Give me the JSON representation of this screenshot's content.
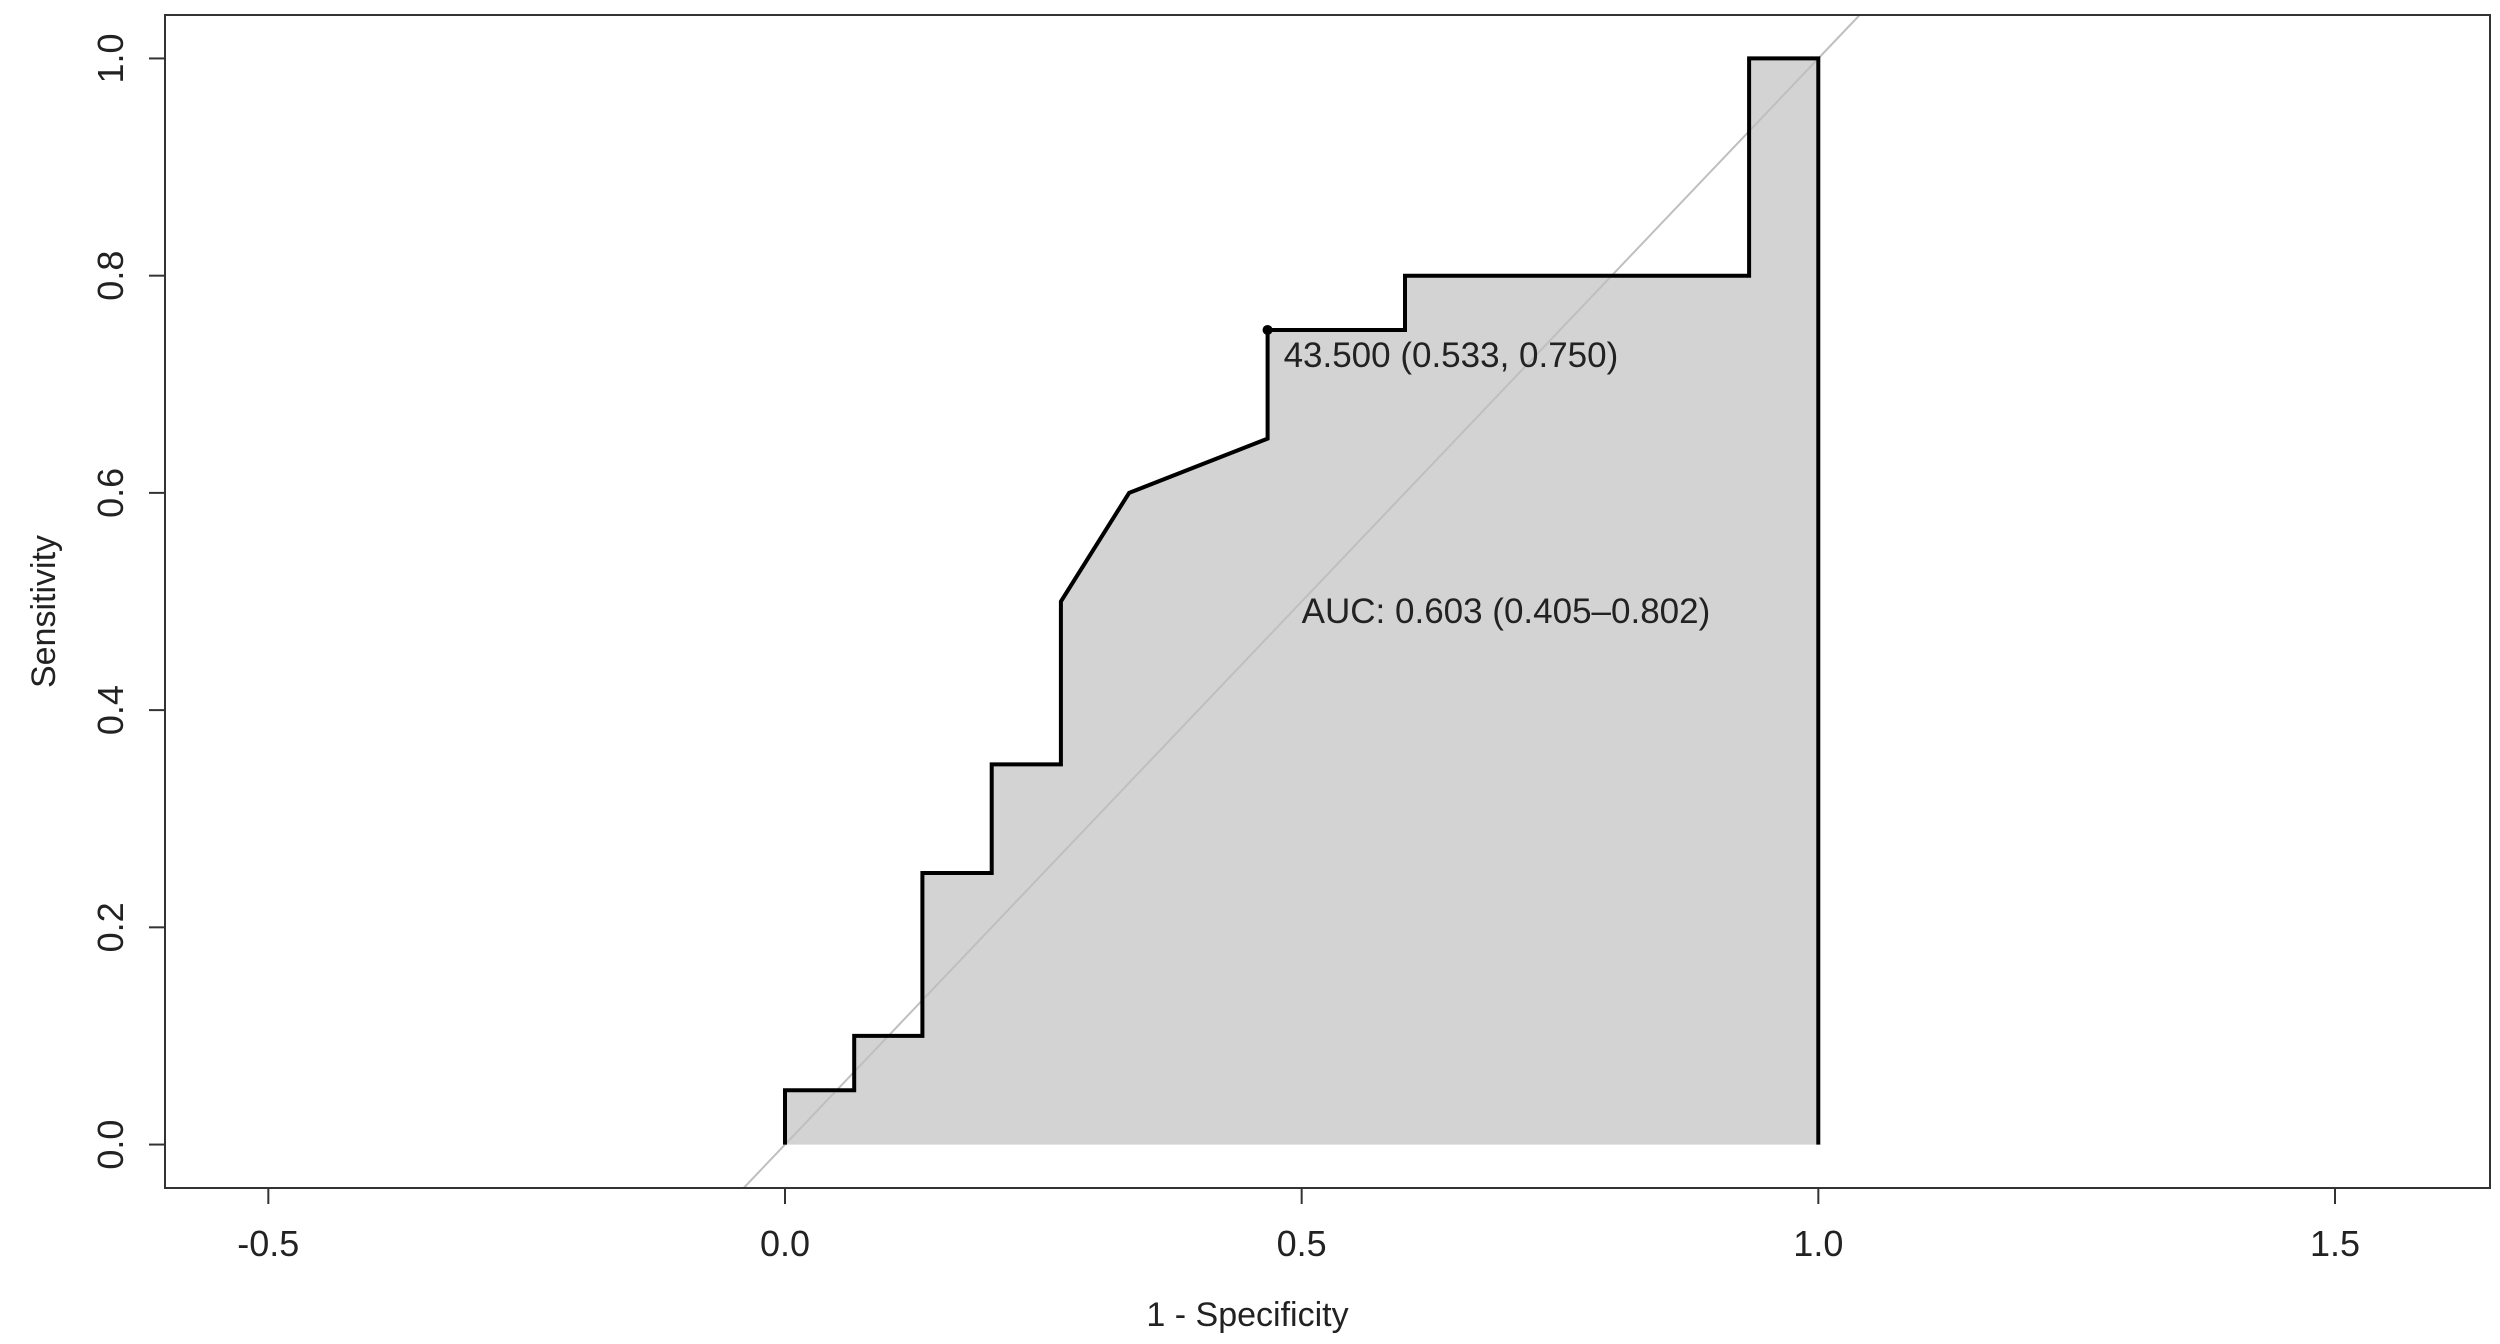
{
  "chart_data": {
    "type": "line",
    "xlabel": "1 - Specificity",
    "ylabel": "Sensitivity",
    "xlim": [
      -0.6,
      1.65
    ],
    "ylim": [
      -0.04,
      1.04
    ],
    "x_ticks": [
      -0.5,
      0.0,
      0.5,
      1.0,
      1.5
    ],
    "x_tick_labels": [
      "-0.5",
      "0.0",
      "0.5",
      "1.0",
      "1.5"
    ],
    "y_ticks": [
      0.0,
      0.2,
      0.4,
      0.6,
      0.8,
      1.0
    ],
    "y_tick_labels": [
      "0.0",
      "0.2",
      "0.4",
      "0.6",
      "0.8",
      "1.0"
    ],
    "grid": false,
    "colors": {
      "curve": "#000000",
      "fill": "#d3d3d3",
      "reference_line": "#bfbfbf",
      "frame": "#333333"
    },
    "series": [
      {
        "points": [
          [
            0.0,
            0.0
          ],
          [
            0.0,
            0.05
          ],
          [
            0.067,
            0.05
          ],
          [
            0.067,
            0.1
          ],
          [
            0.133,
            0.1
          ],
          [
            0.133,
            0.25
          ],
          [
            0.2,
            0.25
          ],
          [
            0.2,
            0.35
          ],
          [
            0.267,
            0.35
          ],
          [
            0.267,
            0.5
          ],
          [
            0.333,
            0.6
          ],
          [
            0.467,
            0.65
          ],
          [
            0.467,
            0.75
          ],
          [
            0.6,
            0.75
          ],
          [
            0.6,
            0.8
          ],
          [
            0.933,
            0.8
          ],
          [
            0.933,
            1.0
          ],
          [
            1.0,
            1.0
          ],
          [
            1.0,
            0.0
          ]
        ]
      }
    ],
    "reference_line": {
      "from": [
        0,
        0
      ],
      "to": [
        1,
        1
      ]
    },
    "threshold_point": {
      "x": 0.467,
      "y": 0.75
    },
    "annotations": {
      "threshold": "43.500 (0.533, 0.750)",
      "auc": "AUC: 0.603 (0.405–0.802)"
    }
  }
}
